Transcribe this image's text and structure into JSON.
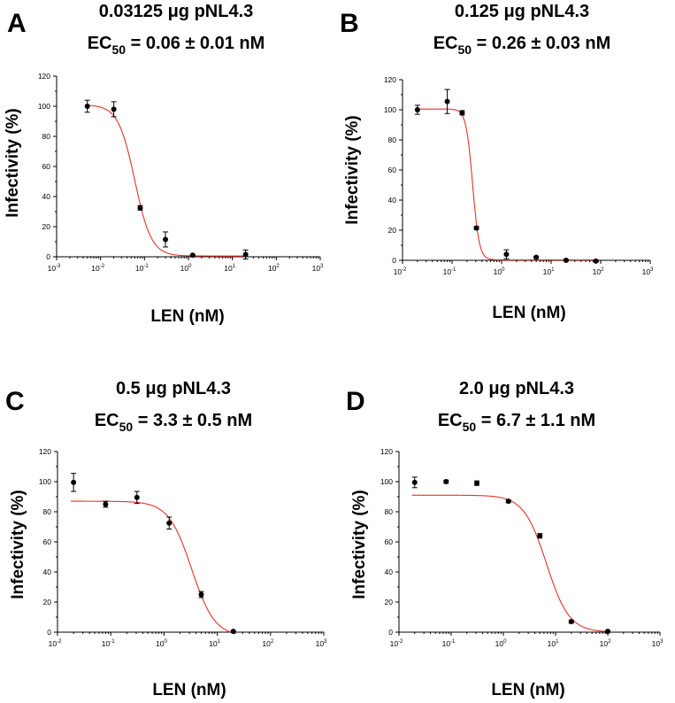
{
  "figure": {
    "curve_color": "#e8312a",
    "point_color": "#000000"
  },
  "chart_data": [
    {
      "panel": "A",
      "type": "scatter",
      "title_line1": "0.03125 μg pNL4.3",
      "title_ec_prefix": "EC",
      "title_ec_sub": "50",
      "title_ec_value": " = 0.06 ± 0.01 nM",
      "xlabel": "LEN (nM)",
      "ylabel": "Infectivity (%)",
      "xscale": "log",
      "xlim_exp": [
        -3,
        3
      ],
      "ylim": [
        0,
        120
      ],
      "yticks": [
        "0",
        "20",
        "40",
        "60",
        "80",
        "100",
        "120"
      ],
      "fit": {
        "top": 101,
        "bottom": 0.5,
        "ec50": 0.06,
        "hill": 2.3
      },
      "series": [
        {
          "name": "data",
          "points": [
            {
              "x": 0.005,
              "y": 100,
              "err": 4
            },
            {
              "x": 0.02,
              "y": 98,
              "err": 5
            },
            {
              "x": 0.08,
              "y": 32.5,
              "err": 1.5
            },
            {
              "x": 0.3,
              "y": 11.5,
              "err": 5
            },
            {
              "x": 1.25,
              "y": 1,
              "err": 0.5
            },
            {
              "x": 20,
              "y": 1.5,
              "err": 3
            }
          ]
        }
      ]
    },
    {
      "panel": "B",
      "type": "scatter",
      "title_line1": "0.125 μg pNL4.3",
      "title_ec_prefix": "EC",
      "title_ec_sub": "50",
      "title_ec_value": " = 0.26 ± 0.03 nM",
      "xlabel": "LEN (nM)",
      "ylabel": "Infectivity (%)",
      "xscale": "log",
      "xlim_exp": [
        -2,
        3
      ],
      "ylim": [
        0,
        120
      ],
      "yticks": [
        "0",
        "20",
        "40",
        "60",
        "80",
        "100",
        "120"
      ],
      "fit": {
        "top": 100.5,
        "bottom": 0.3,
        "ec50": 0.26,
        "hill": 6.5
      },
      "series": [
        {
          "name": "data",
          "points": [
            {
              "x": 0.02,
              "y": 100,
              "err": 3
            },
            {
              "x": 0.08,
              "y": 105.5,
              "err": 8
            },
            {
              "x": 0.16,
              "y": 98,
              "err": 1.5
            },
            {
              "x": 0.31,
              "y": 21.5,
              "err": 1
            },
            {
              "x": 1.25,
              "y": 4,
              "err": 3
            },
            {
              "x": 5,
              "y": 2,
              "err": 0.5
            },
            {
              "x": 20,
              "y": 0,
              "err": 0.5
            },
            {
              "x": 80,
              "y": -0.5,
              "err": 0.5
            }
          ]
        }
      ]
    },
    {
      "panel": "C",
      "type": "scatter",
      "title_line1": "0.5 μg pNL4.3",
      "title_ec_prefix": "EC",
      "title_ec_sub": "50",
      "title_ec_value": " = 3.3 ± 0.5 nM",
      "xlabel": "LEN (nM)",
      "ylabel": "Infectivity (%)",
      "xscale": "log",
      "xlim_exp": [
        -2,
        3
      ],
      "ylim": [
        0,
        120
      ],
      "yticks": [
        "0",
        "20",
        "40",
        "60",
        "80",
        "100",
        "120"
      ],
      "fit": {
        "top": 87,
        "bottom": -3,
        "ec50": 3.3,
        "hill": 2.0
      },
      "series": [
        {
          "name": "data",
          "points": [
            {
              "x": 0.02,
              "y": 99.5,
              "err": 6
            },
            {
              "x": 0.08,
              "y": 85,
              "err": 2
            },
            {
              "x": 0.31,
              "y": 89.5,
              "err": 4
            },
            {
              "x": 1.25,
              "y": 72.5,
              "err": 4
            },
            {
              "x": 5,
              "y": 25,
              "err": 2
            },
            {
              "x": 20,
              "y": 0.5,
              "err": 0.5
            }
          ]
        }
      ]
    },
    {
      "panel": "D",
      "type": "scatter",
      "title_line1": "2.0 μg pNL4.3",
      "title_ec_prefix": "EC",
      "title_ec_sub": "50",
      "title_ec_value": " = 6.7 ± 1.1 nM",
      "xlabel": "LEN (nM)",
      "ylabel": "Infectivity (%)",
      "xscale": "log",
      "xlim_exp": [
        -2,
        3
      ],
      "ylim": [
        0,
        120
      ],
      "yticks": [
        "0",
        "20",
        "40",
        "60",
        "80",
        "100",
        "120"
      ],
      "fit": {
        "top": 91,
        "bottom": 0,
        "ec50": 6.7,
        "hill": 2.0
      },
      "series": [
        {
          "name": "data",
          "points": [
            {
              "x": 0.02,
              "y": 99.5,
              "err": 3.5
            },
            {
              "x": 0.08,
              "y": 100,
              "err": 1
            },
            {
              "x": 0.31,
              "y": 99,
              "err": 1.5
            },
            {
              "x": 1.25,
              "y": 87,
              "err": 1
            },
            {
              "x": 5,
              "y": 64,
              "err": 1.5
            },
            {
              "x": 20,
              "y": 7,
              "err": 1
            },
            {
              "x": 100,
              "y": 0.5,
              "err": 0.5
            }
          ]
        }
      ]
    }
  ]
}
